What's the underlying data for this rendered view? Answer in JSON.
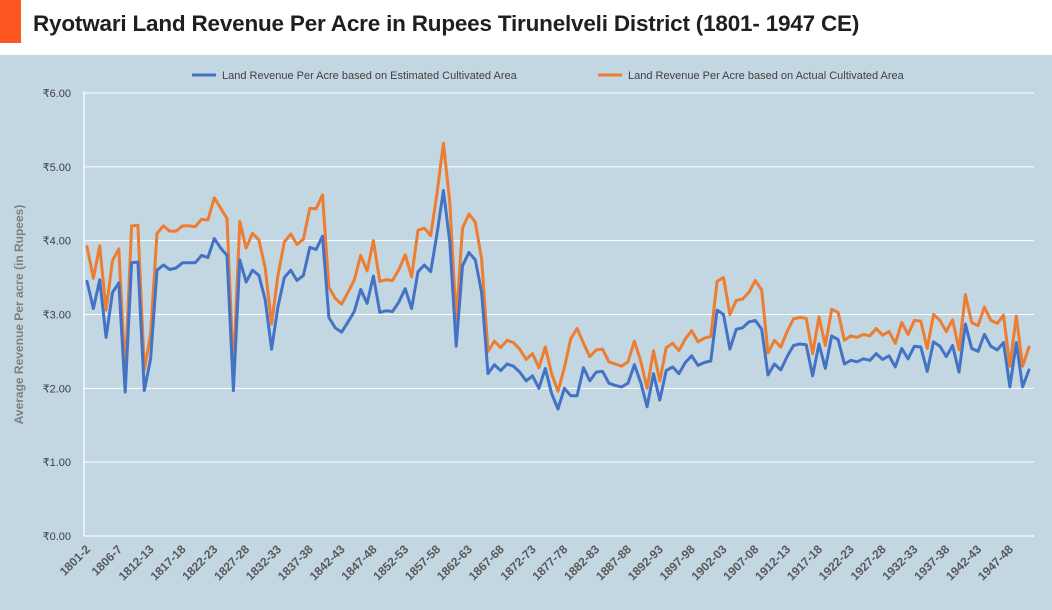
{
  "title": "Ryotwari Land Revenue Per Acre in Rupees Tirunelveli District (1801- 1947 CE)",
  "colors": {
    "accent": "#ff5722",
    "plot_bg": "#c3d7e3",
    "series1": "#4472c4",
    "series2": "#ed7d31",
    "grid": "#ffffff"
  },
  "chart_data": {
    "type": "line",
    "title": "Ryotwari Land Revenue Per Acre in Rupees Tirunelveli District (1801- 1947 CE)",
    "xlabel": "",
    "ylabel": "Average Revenue Per acre  (in Rupees)",
    "ylim": [
      0,
      6
    ],
    "yticks": [
      "₹0.00",
      "₹1.00",
      "₹2.00",
      "₹3.00",
      "₹4.00",
      "₹5.00",
      "₹6.00"
    ],
    "grid": true,
    "legend_position": "top",
    "x_tick_labels": [
      "1801-2",
      "1806-7",
      "1812-13",
      "1817-18",
      "1822-23",
      "1827-28",
      "1832-33",
      "1837-38",
      "1842-43",
      "1847-48",
      "1852-53",
      "1857-58",
      "1862-63",
      "1867-68",
      "1872-73",
      "1877-78",
      "1882-83",
      "1887-88",
      "1892-93",
      "1897-98",
      "1902-03",
      "1907-08",
      "1912-13",
      "1917-18",
      "1922-23",
      "1927-28",
      "1932-33",
      "1937-38",
      "1942-43",
      "1947-48"
    ],
    "series": [
      {
        "name": "Land Revenue Per Acre based on Estimated Cultivated Area",
        "values": [
          3.45,
          3.08,
          3.47,
          2.69,
          3.3,
          3.43,
          1.95,
          3.7,
          3.71,
          1.97,
          2.4,
          3.6,
          3.67,
          3.61,
          3.63,
          3.7,
          3.7,
          3.7,
          3.8,
          3.77,
          4.03,
          3.9,
          3.8,
          1.97,
          3.74,
          3.44,
          3.6,
          3.53,
          3.2,
          2.53,
          3.1,
          3.5,
          3.6,
          3.46,
          3.53,
          3.91,
          3.88,
          4.06,
          2.96,
          2.82,
          2.76,
          2.9,
          3.04,
          3.34,
          3.15,
          3.52,
          3.03,
          3.05,
          3.04,
          3.17,
          3.35,
          3.08,
          3.58,
          3.67,
          3.58,
          4.1,
          4.68,
          3.98,
          2.57,
          3.66,
          3.84,
          3.74,
          3.3,
          2.2,
          2.32,
          2.24,
          2.33,
          2.3,
          2.22,
          2.1,
          2.17,
          2.0,
          2.27,
          1.93,
          1.72,
          2.0,
          1.9,
          1.9,
          2.28,
          2.1,
          2.22,
          2.23,
          2.07,
          2.04,
          2.02,
          2.07,
          2.32,
          2.08,
          1.75,
          2.2,
          1.84,
          2.24,
          2.29,
          2.2,
          2.35,
          2.44,
          2.31,
          2.35,
          2.37,
          3.06,
          3.0,
          2.53,
          2.8,
          2.82,
          2.9,
          2.92,
          2.8,
          2.18,
          2.33,
          2.25,
          2.43,
          2.58,
          2.6,
          2.59,
          2.17,
          2.6,
          2.27,
          2.71,
          2.66,
          2.33,
          2.38,
          2.36,
          2.4,
          2.38,
          2.47,
          2.39,
          2.44,
          2.29,
          2.54,
          2.4,
          2.57,
          2.56,
          2.23,
          2.63,
          2.57,
          2.43,
          2.58,
          2.22,
          2.87,
          2.54,
          2.5,
          2.73,
          2.57,
          2.52,
          2.62,
          2.02,
          2.62,
          2.02,
          2.25
        ]
      },
      {
        "name": "Land Revenue Per Acre based on Actual Cultivated Area",
        "values": [
          3.92,
          3.49,
          3.93,
          3.06,
          3.73,
          3.89,
          2.19,
          4.2,
          4.21,
          2.25,
          2.73,
          4.1,
          4.2,
          4.13,
          4.13,
          4.2,
          4.2,
          4.19,
          4.29,
          4.28,
          4.58,
          4.44,
          4.3,
          2.24,
          4.26,
          3.9,
          4.1,
          4.01,
          3.63,
          2.87,
          3.53,
          3.98,
          4.09,
          3.95,
          4.02,
          4.44,
          4.43,
          4.62,
          3.37,
          3.22,
          3.14,
          3.3,
          3.47,
          3.8,
          3.59,
          4.0,
          3.45,
          3.47,
          3.46,
          3.61,
          3.81,
          3.51,
          4.14,
          4.17,
          4.07,
          4.65,
          5.32,
          4.52,
          2.91,
          4.17,
          4.36,
          4.25,
          3.75,
          2.5,
          2.64,
          2.55,
          2.65,
          2.62,
          2.53,
          2.39,
          2.47,
          2.28,
          2.56,
          2.2,
          1.96,
          2.28,
          2.67,
          2.81,
          2.61,
          2.43,
          2.52,
          2.53,
          2.36,
          2.33,
          2.3,
          2.36,
          2.64,
          2.37,
          2.0,
          2.51,
          2.1,
          2.55,
          2.61,
          2.51,
          2.67,
          2.78,
          2.63,
          2.68,
          2.7,
          3.45,
          3.5,
          3.0,
          3.19,
          3.21,
          3.3,
          3.46,
          3.33,
          2.48,
          2.65,
          2.56,
          2.77,
          2.94,
          2.96,
          2.95,
          2.47,
          2.97,
          2.58,
          3.07,
          3.03,
          2.65,
          2.71,
          2.69,
          2.73,
          2.71,
          2.81,
          2.72,
          2.77,
          2.61,
          2.89,
          2.73,
          2.92,
          2.91,
          2.54,
          3.0,
          2.92,
          2.77,
          2.93,
          2.52,
          3.27,
          2.89,
          2.85,
          3.1,
          2.92,
          2.88,
          2.99,
          2.3,
          2.98,
          2.3,
          2.56
        ]
      }
    ]
  }
}
